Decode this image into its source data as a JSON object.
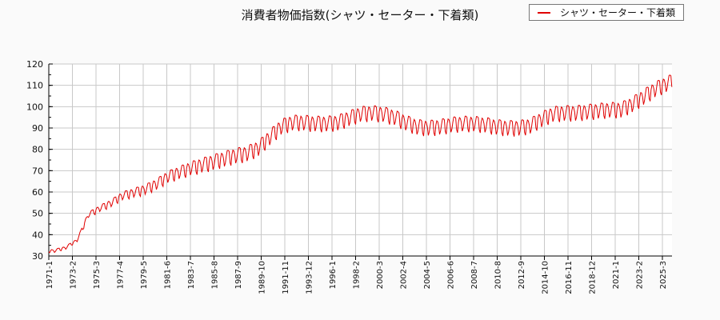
{
  "chart_data": {
    "type": "line",
    "title": "消費者物価指数(シャツ・セーター・下着類)",
    "xlabel": "",
    "ylabel": "",
    "ylim": [
      30,
      120
    ],
    "yticks": [
      30,
      40,
      50,
      60,
      70,
      80,
      90,
      100,
      110,
      120
    ],
    "xtick_labels": [
      "1971-1",
      "1973-2",
      "1975-3",
      "1977-4",
      "1979-5",
      "1981-6",
      "1983-7",
      "1985-8",
      "1987-9",
      "1989-10",
      "1991-11",
      "1993-12",
      "1996-1",
      "1998-2",
      "2000-3",
      "2002-4",
      "2004-5",
      "2006-6",
      "2008-7",
      "2010-8",
      "2012-9",
      "2014-10",
      "2016-11",
      "2018-12",
      "2021-1",
      "2023-2",
      "2025-3"
    ],
    "grid": true,
    "legend_position": "top-right",
    "series": [
      {
        "name": "シャツ・セーター・下着類",
        "color": "#e00000",
        "frequency": "monthly",
        "start": "1971-1",
        "annual_mean_values": {
          "1971": 32.5,
          "1972": 34.0,
          "1973": 37.5,
          "1974": 49.5,
          "1975": 52.5,
          "1976": 55.0,
          "1977": 58.5,
          "1978": 60.0,
          "1979": 61.5,
          "1980": 64.0,
          "1981": 67.5,
          "1982": 69.5,
          "1983": 71.5,
          "1984": 73.0,
          "1985": 74.5,
          "1986": 76.0,
          "1987": 77.5,
          "1988": 78.5,
          "1989": 81.0,
          "1990": 86.0,
          "1991": 91.0,
          "1992": 93.0,
          "1993": 93.0,
          "1994": 92.5,
          "1995": 92.5,
          "1996": 93.0,
          "1997": 95.0,
          "1998": 97.0,
          "1999": 97.5,
          "2000": 97.0,
          "2001": 95.5,
          "2002": 93.0,
          "2003": 91.0,
          "2004": 90.5,
          "2005": 91.0,
          "2006": 92.0,
          "2007": 92.5,
          "2008": 92.5,
          "2009": 92.0,
          "2010": 91.0,
          "2011": 90.5,
          "2012": 90.5,
          "2013": 91.5,
          "2014": 94.5,
          "2015": 97.0,
          "2016": 97.5,
          "2017": 97.5,
          "2018": 98.0,
          "2019": 98.5,
          "2020": 99.0,
          "2021": 99.0,
          "2022": 101.5,
          "2023": 105.0,
          "2024": 108.5,
          "2025": 111.0
        },
        "seasonal_amplitude_note": "Strong seasonal cycle ~±4 points from mid-1970s onward (peaks in spring/autumn, dips in summer/winter sales)"
      }
    ]
  },
  "legend": {
    "label": "シャツ・セーター・下着類",
    "color": "#e00000"
  }
}
